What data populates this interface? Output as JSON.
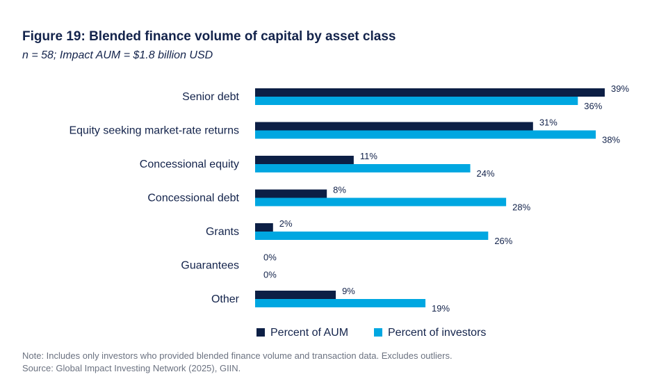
{
  "figure": {
    "title": "Figure 19: Blended finance volume of capital by asset class",
    "subtitle": "n = 58; Impact AUM = $1.8 billion USD",
    "note": "Note: Includes only investors who provided blended finance volume and transaction data. Excludes outliers.",
    "source": "Source: Global Impact Investing Network (2025), GIIN."
  },
  "chart_data": {
    "type": "bar",
    "orientation": "horizontal",
    "categories": [
      "Senior debt",
      "Equity seeking market-rate returns",
      "Concessional equity",
      "Concessional debt",
      "Grants",
      "Guarantees",
      "Other"
    ],
    "series": [
      {
        "name": "Percent of AUM",
        "color": "#0c1f45",
        "values": [
          39,
          31,
          11,
          8,
          2,
          0,
          9
        ],
        "labels": [
          "39%",
          "31%",
          "11%",
          "8%",
          "2%",
          "0%",
          "9%"
        ]
      },
      {
        "name": "Percent of investors",
        "color": "#00a7e1",
        "values": [
          36,
          38,
          24,
          28,
          26,
          0,
          19
        ],
        "labels": [
          "36%",
          "38%",
          "24%",
          "28%",
          "26%",
          "0%",
          "19%"
        ]
      }
    ],
    "xlim": [
      0,
      39
    ],
    "legend_position": "bottom",
    "grid": false
  }
}
